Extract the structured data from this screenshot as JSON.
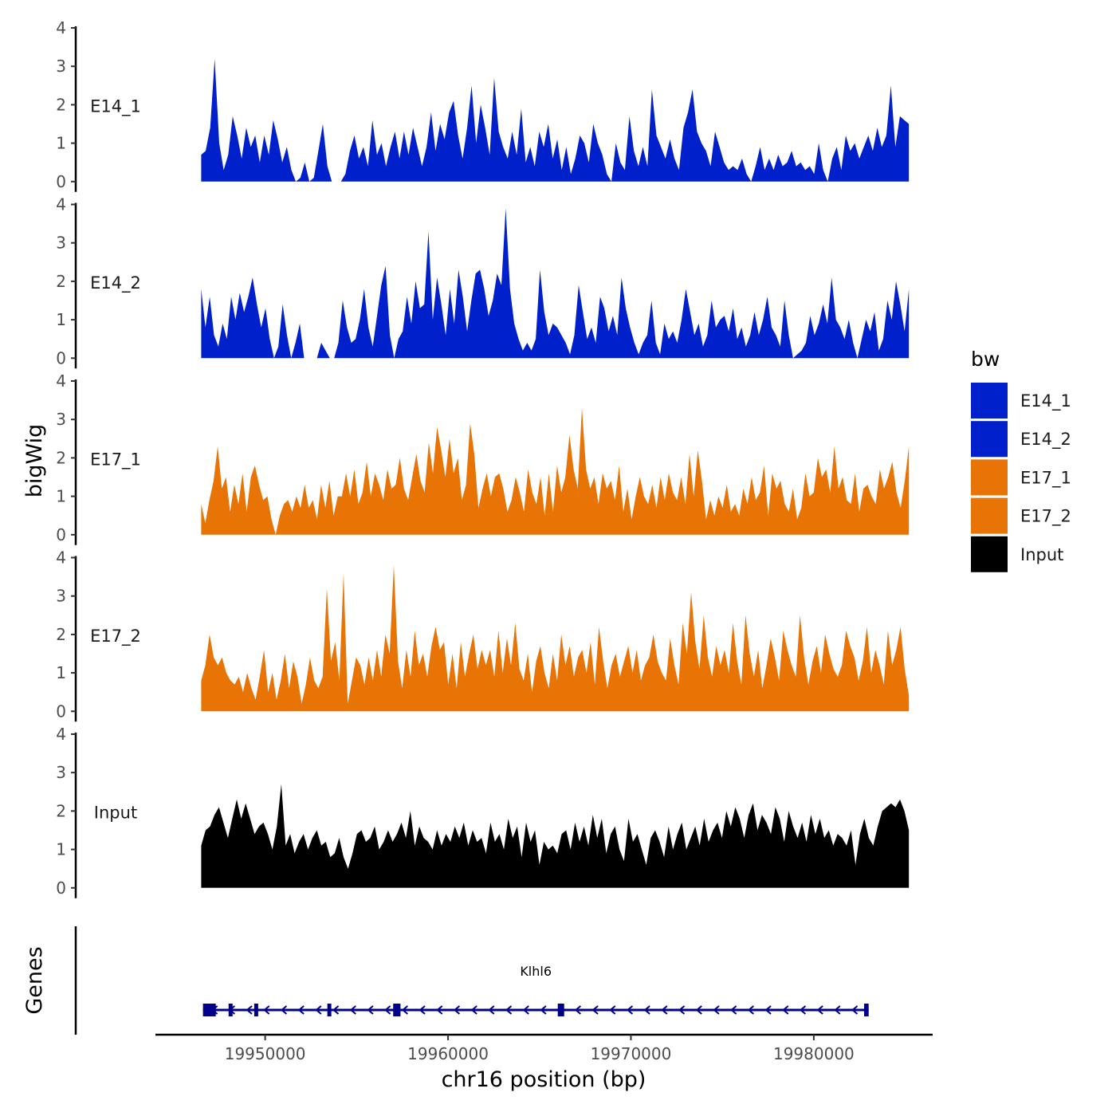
{
  "chart_data": {
    "type": "area",
    "chromosome": "chr16",
    "xlabel": "chr16 position (bp)",
    "ylabel": "bigWig",
    "genes_label": "Genes",
    "xlim": [
      19944000,
      19986500
    ],
    "data_range": [
      19946500,
      19985200
    ],
    "x_ticks": [
      19950000,
      19960000,
      19970000,
      19980000
    ],
    "x_tick_labels": [
      "19950000",
      "19960000",
      "19970000",
      "19980000"
    ],
    "y_ticks": [
      0,
      1,
      2,
      3,
      4
    ],
    "y_tick_labels": [
      "0",
      "1",
      "2",
      "3",
      "4"
    ],
    "ylim": [
      0,
      4
    ],
    "legend": {
      "title": "bw",
      "position": "right",
      "entries": [
        {
          "label": "E14_1",
          "color": "#0020CC"
        },
        {
          "label": "E14_2",
          "color": "#0020CC"
        },
        {
          "label": "E17_1",
          "color": "#E87405"
        },
        {
          "label": "E17_2",
          "color": "#E87405"
        },
        {
          "label": "Input",
          "color": "#000000"
        }
      ]
    },
    "series": [
      {
        "name": "E14_1",
        "label": "E14_1",
        "color": "#0020CC",
        "values": [
          0.7,
          0.8,
          1.4,
          3.2,
          1.0,
          0.3,
          0.7,
          1.7,
          1.2,
          0.6,
          1.4,
          0.9,
          1.2,
          0.5,
          1.2,
          0.7,
          1.6,
          1.1,
          0.5,
          0.9,
          0.3,
          0.0,
          0.1,
          0.5,
          0.0,
          0.1,
          0.8,
          1.5,
          0.4,
          0.0,
          0.0,
          0.0,
          0.2,
          0.8,
          1.2,
          0.6,
          0.9,
          0.4,
          1.6,
          0.7,
          1.0,
          0.4,
          0.9,
          1.3,
          0.6,
          1.3,
          0.7,
          1.4,
          0.9,
          0.4,
          0.9,
          1.8,
          0.8,
          1.5,
          1.1,
          1.8,
          2.1,
          1.2,
          0.6,
          1.4,
          2.5,
          1.0,
          2.0,
          1.4,
          0.7,
          2.7,
          1.3,
          0.9,
          0.6,
          1.3,
          0.7,
          1.9,
          0.5,
          0.9,
          0.4,
          1.3,
          0.9,
          1.5,
          0.6,
          1.1,
          0.3,
          0.9,
          0.2,
          0.6,
          1.2,
          1.0,
          0.5,
          1.5,
          1.0,
          0.7,
          0.2,
          0.0,
          1.0,
          0.5,
          0.3,
          1.7,
          0.8,
          0.4,
          0.9,
          0.4,
          2.4,
          1.2,
          0.9,
          0.6,
          1.1,
          0.6,
          0.3,
          1.4,
          1.8,
          2.4,
          1.3,
          1.0,
          0.8,
          0.4,
          1.3,
          0.9,
          0.5,
          0.3,
          0.4,
          0.3,
          0.6,
          0.2,
          0.0,
          0.4,
          0.9,
          0.3,
          0.6,
          0.3,
          0.7,
          0.4,
          0.5,
          0.8,
          0.4,
          0.5,
          0.3,
          0.4,
          0.2,
          1.0,
          0.3,
          0.0,
          0.6,
          0.9,
          0.3,
          1.2,
          0.8,
          1.0,
          0.6,
          0.9,
          1.2,
          0.8,
          1.4,
          0.9,
          1.2,
          2.5,
          0.9,
          1.7,
          1.6,
          1.5
        ]
      },
      {
        "name": "E14_2",
        "label": "E14_2",
        "color": "#0020CC",
        "values": [
          1.8,
          0.8,
          1.6,
          0.6,
          0.3,
          0.9,
          0.5,
          1.6,
          1.0,
          1.7,
          1.2,
          1.6,
          2.1,
          1.4,
          0.8,
          1.3,
          0.5,
          0.0,
          0.3,
          1.4,
          0.6,
          0.0,
          0.4,
          0.9,
          0.0,
          0.0,
          0.0,
          0.0,
          0.4,
          0.2,
          0.0,
          0.0,
          0.4,
          1.5,
          0.8,
          0.4,
          0.5,
          1.0,
          1.8,
          0.8,
          0.3,
          1.1,
          1.9,
          2.4,
          0.6,
          0.0,
          0.5,
          0.7,
          1.6,
          0.9,
          2.0,
          1.3,
          1.4,
          3.3,
          1.0,
          2.1,
          1.4,
          0.6,
          1.8,
          0.9,
          2.3,
          1.6,
          0.7,
          1.5,
          2.2,
          2.3,
          1.8,
          1.1,
          1.5,
          2.2,
          1.9,
          3.9,
          1.8,
          0.9,
          0.5,
          0.2,
          0.4,
          0.2,
          0.5,
          2.3,
          1.2,
          0.6,
          0.9,
          0.8,
          0.6,
          0.4,
          0.1,
          0.6,
          1.9,
          1.2,
          0.5,
          0.8,
          0.4,
          1.6,
          1.3,
          0.7,
          1.1,
          0.6,
          2.1,
          1.3,
          0.8,
          0.4,
          0.1,
          0.4,
          0.6,
          1.5,
          0.4,
          0.1,
          0.9,
          0.5,
          0.7,
          0.4,
          1.0,
          1.8,
          1.2,
          0.6,
          0.9,
          0.3,
          0.6,
          1.5,
          0.8,
          1.0,
          1.1,
          0.7,
          1.3,
          0.5,
          0.8,
          0.3,
          0.6,
          1.2,
          0.6,
          1.0,
          1.6,
          0.8,
          0.6,
          0.3,
          1.5,
          0.6,
          0.0,
          0.1,
          0.2,
          0.4,
          1.1,
          0.6,
          0.9,
          1.4,
          0.9,
          2.1,
          1.0,
          0.8,
          0.5,
          1.0,
          0.4,
          0.0,
          0.5,
          1.0,
          0.7,
          1.2,
          0.2,
          0.5,
          1.5,
          1.0,
          2.0,
          1.4,
          0.7,
          1.8
        ]
      },
      {
        "name": "E17_1",
        "label": "E17_1",
        "color": "#E87405",
        "values": [
          0.8,
          0.3,
          0.9,
          1.4,
          2.3,
          1.2,
          1.5,
          0.6,
          1.3,
          0.8,
          1.6,
          0.6,
          1.5,
          1.8,
          1.3,
          0.9,
          1.0,
          0.4,
          0.0,
          0.5,
          0.8,
          0.9,
          0.6,
          1.0,
          0.7,
          1.3,
          0.7,
          0.9,
          0.4,
          1.3,
          0.7,
          1.4,
          0.5,
          1.0,
          1.0,
          1.6,
          1.0,
          1.7,
          0.8,
          1.1,
          1.9,
          1.0,
          1.6,
          1.3,
          0.9,
          1.7,
          1.2,
          1.3,
          2.0,
          1.2,
          0.9,
          1.5,
          2.1,
          1.4,
          1.1,
          2.4,
          1.6,
          2.8,
          2.2,
          1.5,
          2.5,
          1.6,
          2.0,
          0.9,
          1.3,
          2.9,
          2.1,
          0.7,
          1.2,
          1.6,
          1.0,
          1.5,
          1.6,
          1.2,
          0.6,
          0.9,
          1.5,
          1.1,
          0.6,
          1.7,
          1.1,
          0.8,
          1.5,
          0.5,
          1.6,
          0.6,
          1.8,
          1.1,
          1.5,
          2.6,
          1.7,
          1.2,
          3.3,
          1.7,
          1.2,
          1.5,
          0.8,
          1.6,
          1.2,
          1.4,
          0.9,
          1.8,
          0.6,
          1.2,
          0.4,
          1.0,
          1.5,
          1.0,
          0.8,
          1.3,
          0.7,
          1.5,
          0.9,
          1.6,
          1.1,
          0.9,
          1.5,
          0.8,
          2.1,
          1.0,
          2.2,
          1.4,
          0.4,
          0.9,
          0.5,
          1.0,
          0.7,
          1.3,
          0.6,
          0.8,
          0.5,
          1.2,
          0.8,
          1.5,
          0.9,
          1.1,
          1.8,
          0.5,
          1.6,
          1.2,
          1.4,
          0.8,
          0.6,
          1.2,
          0.4,
          0.7,
          1.6,
          1.0,
          1.1,
          2.0,
          1.5,
          1.7,
          1.1,
          2.3,
          1.2,
          1.5,
          0.9,
          0.8,
          1.6,
          0.6,
          1.2,
          1.3,
          1.0,
          0.8,
          1.7,
          1.2,
          1.5,
          1.9,
          1.1,
          0.7,
          1.4,
          2.3
        ]
      },
      {
        "name": "E17_2",
        "label": "E17_2",
        "color": "#E87405",
        "values": [
          0.8,
          1.2,
          2.0,
          1.4,
          1.2,
          1.4,
          1.0,
          0.8,
          0.7,
          0.9,
          0.5,
          1.0,
          0.6,
          0.3,
          0.9,
          1.6,
          0.5,
          1.0,
          0.3,
          0.8,
          1.5,
          0.6,
          1.3,
          0.9,
          0.2,
          0.7,
          1.4,
          0.8,
          0.6,
          0.9,
          3.2,
          1.3,
          1.8,
          0.8,
          3.6,
          0.2,
          0.8,
          1.4,
          1.2,
          0.7,
          1.4,
          0.8,
          1.6,
          0.9,
          2.0,
          1.5,
          3.8,
          1.3,
          0.6,
          1.6,
          0.9,
          2.1,
          1.2,
          1.5,
          0.9,
          1.7,
          2.2,
          1.6,
          1.8,
          0.7,
          1.5,
          0.6,
          1.8,
          0.9,
          1.5,
          2.0,
          1.1,
          1.6,
          1.2,
          1.6,
          0.9,
          2.1,
          1.0,
          1.9,
          1.2,
          2.3,
          1.1,
          0.8,
          1.5,
          0.5,
          1.3,
          1.7,
          1.0,
          0.6,
          1.5,
          0.8,
          2.0,
          1.2,
          1.7,
          0.9,
          1.4,
          1.6,
          1.0,
          1.8,
          0.7,
          2.2,
          1.3,
          0.6,
          1.2,
          1.5,
          0.9,
          1.3,
          1.7,
          1.0,
          1.6,
          0.8,
          1.2,
          1.4,
          2.0,
          1.3,
          1.0,
          0.8,
          1.9,
          1.2,
          0.7,
          2.3,
          1.5,
          3.1,
          1.8,
          1.1,
          2.5,
          1.4,
          0.9,
          1.7,
          1.2,
          1.6,
          1.0,
          2.3,
          1.3,
          0.7,
          2.5,
          1.5,
          0.9,
          1.6,
          0.6,
          1.2,
          1.9,
          1.4,
          0.8,
          2.1,
          1.6,
          1.2,
          0.9,
          2.5,
          1.4,
          0.7,
          1.3,
          1.7,
          1.0,
          2.0,
          1.5,
          1.1,
          0.9,
          1.2,
          2.1,
          1.7,
          1.4,
          0.8,
          1.3,
          2.2,
          1.0,
          1.6,
          1.2,
          0.7,
          2.1,
          1.2,
          1.6,
          2.2,
          1.1,
          0.4
        ]
      },
      {
        "name": "Input",
        "label": "Input",
        "color": "#000000",
        "values": [
          1.1,
          1.5,
          1.6,
          1.9,
          2.1,
          1.7,
          1.3,
          1.8,
          2.3,
          1.8,
          2.2,
          1.8,
          1.4,
          1.6,
          1.7,
          1.4,
          1.0,
          1.6,
          2.7,
          1.1,
          1.4,
          0.9,
          1.2,
          1.4,
          1.0,
          1.3,
          1.5,
          1.1,
          1.2,
          0.8,
          0.9,
          1.3,
          0.8,
          0.5,
          0.9,
          1.4,
          1.5,
          1.2,
          1.3,
          1.6,
          1.0,
          1.2,
          1.5,
          1.2,
          1.4,
          1.7,
          1.3,
          2.0,
          1.1,
          1.6,
          1.3,
          1.2,
          1.0,
          1.5,
          1.1,
          1.4,
          1.2,
          1.6,
          1.3,
          1.7,
          1.1,
          1.5,
          1.2,
          1.3,
          0.9,
          1.7,
          1.2,
          1.4,
          1.0,
          1.8,
          1.3,
          1.6,
          0.8,
          1.7,
          1.2,
          1.5,
          0.6,
          1.2,
          1.0,
          1.1,
          0.9,
          1.4,
          1.5,
          1.0,
          1.7,
          1.2,
          1.6,
          1.1,
          1.9,
          1.3,
          1.8,
          0.9,
          1.4,
          1.6,
          1.0,
          0.7,
          1.8,
          1.2,
          1.4,
          1.0,
          0.6,
          1.3,
          1.5,
          1.2,
          0.8,
          1.6,
          1.0,
          1.4,
          1.7,
          1.0,
          1.3,
          1.6,
          1.1,
          1.8,
          1.2,
          1.5,
          1.7,
          1.3,
          2.0,
          1.6,
          2.1,
          1.8,
          1.3,
          1.9,
          2.2,
          1.5,
          1.9,
          1.7,
          1.4,
          2.1,
          1.8,
          1.2,
          2.0,
          1.6,
          1.3,
          1.7,
          1.2,
          1.9,
          1.4,
          1.8,
          1.3,
          1.5,
          1.1,
          1.4,
          1.3,
          1.1,
          1.5,
          0.6,
          1.4,
          1.8,
          1.3,
          1.1,
          1.6,
          2.0,
          2.1,
          2.2,
          2.1,
          2.3,
          2.0,
          1.5
        ]
      }
    ],
    "gene": {
      "name": "Klhl6",
      "strand": "-",
      "start": 19946600,
      "end": 19983000,
      "color": "#00008B",
      "exons": [
        {
          "start": 19946600,
          "end": 19947300
        },
        {
          "start": 19948000,
          "end": 19948150
        },
        {
          "start": 19949400,
          "end": 19949550
        },
        {
          "start": 19953400,
          "end": 19953550
        },
        {
          "start": 19957000,
          "end": 19957400
        },
        {
          "start": 19966000,
          "end": 19966350
        },
        {
          "start": 19982750,
          "end": 19983000
        }
      ]
    }
  }
}
